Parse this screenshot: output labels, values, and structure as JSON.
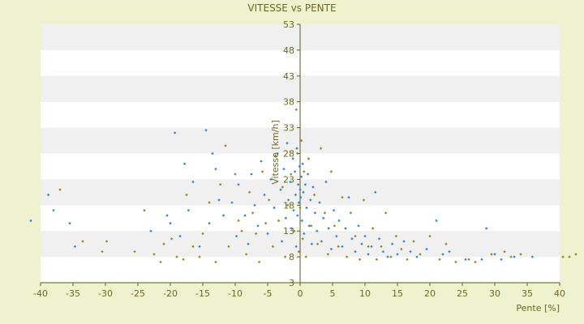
{
  "chart_data": {
    "type": "scatter",
    "title": "VITESSE vs PENTE",
    "xlabel": "Pente [%]",
    "ylabel": "Vitesse [km/h]",
    "xlim": [
      -40,
      40
    ],
    "ylim": [
      3,
      53
    ],
    "x_ticks": [
      -40,
      -35,
      -30,
      -25,
      -20,
      -15,
      -10,
      -5,
      0,
      5,
      10,
      15,
      20,
      25,
      30,
      35,
      40
    ],
    "y_ticks": [
      3,
      8,
      13,
      18,
      23,
      28,
      33,
      38,
      43,
      48,
      53
    ],
    "grid": "horizontal alternating bands",
    "colors": {
      "background": "#eef2cf",
      "band_light": "#ffffff",
      "band_dark": "#f0f0f0",
      "axis": "#5b5a1a",
      "text": "#6b6a1e",
      "series_blue": "#2f86d6",
      "series_olive": "#8f8a1e"
    },
    "series": [
      {
        "color": "#2f86d6",
        "points": [
          [
            -41.5,
            15.0
          ],
          [
            -38.8,
            20.0
          ],
          [
            -38.0,
            17.0
          ],
          [
            -35.5,
            14.5
          ],
          [
            -34.7,
            10.0
          ],
          [
            -23.0,
            13.0
          ],
          [
            -20.5,
            16.0
          ],
          [
            -20.0,
            14.5
          ],
          [
            -19.3,
            32.0
          ],
          [
            -18.5,
            12.0
          ],
          [
            -17.8,
            26.0
          ],
          [
            -17.2,
            17.0
          ],
          [
            -16.5,
            22.5
          ],
          [
            -15.5,
            10.0
          ],
          [
            -14.5,
            32.5
          ],
          [
            -14.0,
            14.5
          ],
          [
            -13.5,
            28.0
          ],
          [
            -13.0,
            25.0
          ],
          [
            -12.5,
            19.0
          ],
          [
            -11.8,
            16.0
          ],
          [
            -10.5,
            18.5
          ],
          [
            -9.8,
            12.0
          ],
          [
            -9.5,
            22.0
          ],
          [
            -8.5,
            16.0
          ],
          [
            -8.0,
            10.5
          ],
          [
            -7.5,
            24.0
          ],
          [
            -7.0,
            18.0
          ],
          [
            -6.5,
            14.0
          ],
          [
            -6.0,
            26.5
          ],
          [
            -5.5,
            20.0
          ],
          [
            -5.0,
            12.5
          ],
          [
            -4.5,
            23.0
          ],
          [
            -4.0,
            17.5
          ],
          [
            -3.5,
            28.0
          ],
          [
            -3.0,
            21.0
          ],
          [
            -2.8,
            11.0
          ],
          [
            -2.5,
            25.0
          ],
          [
            -2.2,
            15.5
          ],
          [
            -2.0,
            30.0
          ],
          [
            -1.8,
            19.0
          ],
          [
            -1.5,
            22.5
          ],
          [
            -1.3,
            13.5
          ],
          [
            -1.1,
            27.0
          ],
          [
            -1.0,
            17.0
          ],
          [
            -0.8,
            24.5
          ],
          [
            -0.7,
            20.0
          ],
          [
            -0.6,
            10.0
          ],
          [
            -0.5,
            29.0
          ],
          [
            -0.4,
            16.0
          ],
          [
            -0.3,
            22.0
          ],
          [
            -0.2,
            18.5
          ],
          [
            -0.1,
            25.5
          ],
          [
            0.0,
            21.0
          ],
          [
            0.1,
            19.5
          ],
          [
            0.2,
            23.5
          ],
          [
            0.3,
            15.0
          ],
          [
            0.4,
            26.0
          ],
          [
            0.5,
            20.5
          ],
          [
            0.6,
            12.5
          ],
          [
            0.8,
            22.0
          ],
          [
            1.0,
            17.5
          ],
          [
            1.2,
            24.0
          ],
          [
            1.4,
            14.0
          ],
          [
            1.6,
            19.0
          ],
          [
            1.8,
            10.5
          ],
          [
            2.0,
            21.5
          ],
          [
            2.3,
            16.5
          ],
          [
            2.6,
            13.0
          ],
          [
            3.0,
            18.5
          ],
          [
            3.3,
            11.0
          ],
          [
            3.6,
            15.5
          ],
          [
            4.0,
            22.5
          ],
          [
            4.4,
            13.5
          ],
          [
            4.8,
            9.5
          ],
          [
            5.2,
            17.0
          ],
          [
            5.6,
            12.0
          ],
          [
            6.0,
            15.0
          ],
          [
            6.5,
            10.0
          ],
          [
            7.0,
            13.5
          ],
          [
            7.5,
            19.5
          ],
          [
            8.0,
            11.5
          ],
          [
            8.5,
            9.0
          ],
          [
            9.0,
            14.0
          ],
          [
            9.5,
            10.5
          ],
          [
            10.0,
            12.0
          ],
          [
            10.5,
            8.5
          ],
          [
            11.0,
            10.0
          ],
          [
            11.6,
            20.5
          ],
          [
            12.2,
            11.5
          ],
          [
            12.8,
            9.0
          ],
          [
            13.5,
            8.0
          ],
          [
            14.2,
            10.5
          ],
          [
            15.0,
            8.5
          ],
          [
            16.0,
            11.0
          ],
          [
            17.0,
            9.0
          ],
          [
            18.0,
            8.0
          ],
          [
            19.5,
            9.5
          ],
          [
            21.0,
            15.0
          ],
          [
            22.0,
            8.5
          ],
          [
            23.0,
            9.0
          ],
          [
            25.5,
            7.5
          ],
          [
            28.0,
            7.5
          ],
          [
            28.7,
            13.5
          ],
          [
            30.0,
            8.5
          ],
          [
            31.0,
            7.5
          ],
          [
            33.0,
            8.0
          ],
          [
            35.8,
            8.0
          ]
        ]
      },
      {
        "color": "#8f8a1e",
        "points": [
          [
            -37.0,
            21.0
          ],
          [
            -33.5,
            11.0
          ],
          [
            -30.5,
            9.0
          ],
          [
            -29.8,
            11.0
          ],
          [
            -25.5,
            9.0
          ],
          [
            -24.0,
            17.0
          ],
          [
            -22.5,
            8.5
          ],
          [
            -21.5,
            7.0
          ],
          [
            -21.0,
            10.5
          ],
          [
            -19.8,
            11.5
          ],
          [
            -19.0,
            8.0
          ],
          [
            -18.0,
            7.5
          ],
          [
            -17.5,
            20.0
          ],
          [
            -16.5,
            10.0
          ],
          [
            -15.5,
            8.0
          ],
          [
            -15.0,
            12.5
          ],
          [
            -14.0,
            18.5
          ],
          [
            -13.0,
            7.0
          ],
          [
            -12.3,
            22.0
          ],
          [
            -11.5,
            29.5
          ],
          [
            -11.0,
            10.0
          ],
          [
            -10.0,
            24.0
          ],
          [
            -9.5,
            15.0
          ],
          [
            -9.0,
            13.0
          ],
          [
            -8.3,
            8.5
          ],
          [
            -7.8,
            20.5
          ],
          [
            -7.3,
            16.5
          ],
          [
            -6.8,
            12.5
          ],
          [
            -6.3,
            7.0
          ],
          [
            -5.8,
            24.5
          ],
          [
            -5.3,
            14.5
          ],
          [
            -4.8,
            19.0
          ],
          [
            -4.2,
            10.0
          ],
          [
            -3.8,
            27.5
          ],
          [
            -3.3,
            15.0
          ],
          [
            -2.7,
            21.5
          ],
          [
            -2.3,
            8.0
          ],
          [
            -1.9,
            18.0
          ],
          [
            -1.4,
            24.0
          ],
          [
            -0.9,
            13.0
          ],
          [
            -0.6,
            36.5
          ],
          [
            -0.4,
            28.0
          ],
          [
            -0.2,
            9.0
          ],
          [
            0.0,
            17.5
          ],
          [
            0.2,
            30.5
          ],
          [
            0.4,
            11.5
          ],
          [
            0.6,
            24.5
          ],
          [
            0.9,
            8.0
          ],
          [
            1.3,
            27.0
          ],
          [
            1.7,
            14.0
          ],
          [
            2.2,
            20.0
          ],
          [
            2.7,
            10.5
          ],
          [
            3.2,
            29.0
          ],
          [
            3.8,
            16.5
          ],
          [
            4.3,
            8.5
          ],
          [
            4.8,
            24.5
          ],
          [
            5.3,
            14.0
          ],
          [
            5.9,
            10.0
          ],
          [
            6.5,
            19.5
          ],
          [
            7.2,
            8.0
          ],
          [
            7.8,
            16.5
          ],
          [
            8.5,
            12.0
          ],
          [
            9.2,
            7.5
          ],
          [
            9.8,
            19.0
          ],
          [
            10.5,
            10.0
          ],
          [
            11.2,
            13.5
          ],
          [
            11.8,
            7.5
          ],
          [
            12.5,
            10.0
          ],
          [
            13.2,
            16.5
          ],
          [
            14.0,
            8.0
          ],
          [
            14.8,
            12.0
          ],
          [
            15.6,
            9.5
          ],
          [
            16.5,
            7.5
          ],
          [
            17.5,
            11.0
          ],
          [
            18.5,
            8.5
          ],
          [
            20.0,
            12.0
          ],
          [
            21.5,
            7.5
          ],
          [
            22.5,
            10.5
          ],
          [
            24.0,
            7.0
          ],
          [
            26.0,
            7.5
          ],
          [
            27.0,
            7.0
          ],
          [
            29.5,
            8.5
          ],
          [
            31.5,
            9.0
          ],
          [
            32.5,
            8.0
          ],
          [
            34.0,
            8.5
          ],
          [
            40.5,
            8.0
          ],
          [
            41.5,
            8.0
          ],
          [
            42.5,
            8.5
          ]
        ]
      }
    ]
  }
}
